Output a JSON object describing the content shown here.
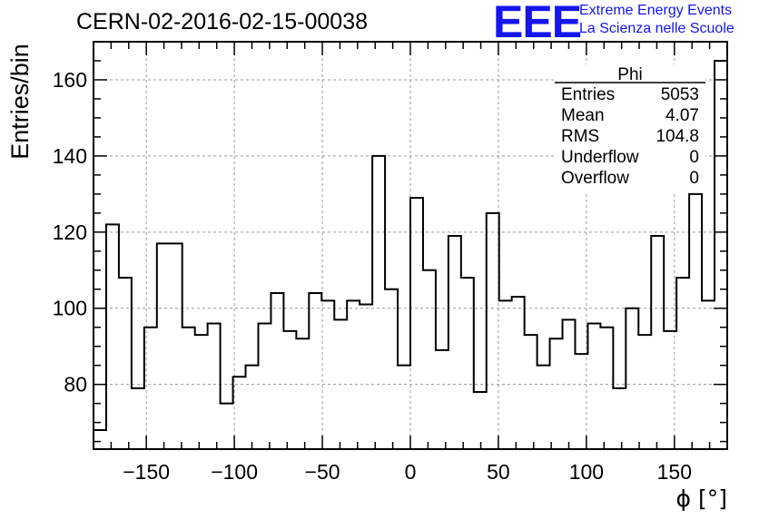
{
  "header": {
    "run_title": "CERN-02-2016-02-15-00038",
    "logo_text": "EEE",
    "logo_line1": "Extreme Energy Events",
    "logo_line2": "La Scienza nelle Scuole"
  },
  "stats_box": {
    "title": "Phi",
    "rows": [
      {
        "label": "Entries",
        "value": "5053"
      },
      {
        "label": "Mean",
        "value": "4.07"
      },
      {
        "label": "RMS",
        "value": "104.8"
      },
      {
        "label": "Underflow",
        "value": "0"
      },
      {
        "label": "Overflow",
        "value": "0"
      }
    ]
  },
  "chart_data": {
    "type": "histogram",
    "title": "CERN-02-2016-02-15-00038",
    "xlabel": "ϕ [°]",
    "ylabel": "Entries/bin",
    "xlim": [
      -180,
      180
    ],
    "ylim": [
      63,
      170
    ],
    "bin_width": 7.2,
    "bin_edges_start": -180,
    "x_ticks": [
      -150,
      -100,
      -50,
      0,
      50,
      100,
      150
    ],
    "y_ticks": [
      80,
      100,
      120,
      140,
      160
    ],
    "grid": true,
    "values": [
      68,
      122,
      108,
      79,
      95,
      117,
      117,
      95,
      93,
      96,
      75,
      82,
      85,
      96,
      104,
      94,
      92,
      104,
      102,
      97,
      102,
      101,
      140,
      105,
      85,
      129,
      110,
      89,
      119,
      108,
      78,
      125,
      102,
      103,
      93,
      85,
      92,
      97,
      88,
      96,
      95,
      79,
      100,
      93,
      119,
      94,
      108,
      130,
      102,
      165
    ]
  }
}
